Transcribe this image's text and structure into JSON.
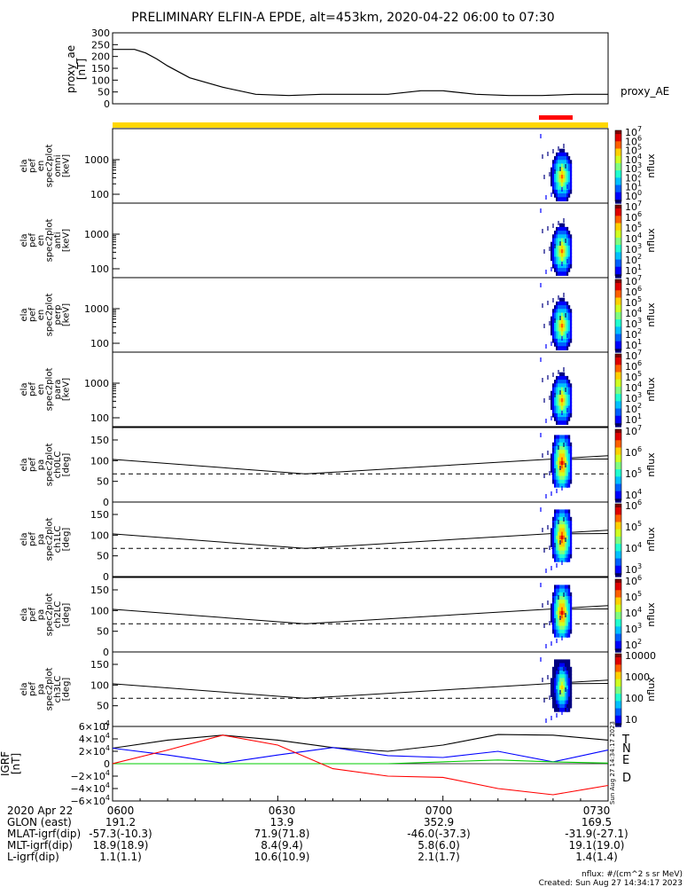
{
  "title": "PRELIMINARY ELFIN-A EPDE, alt=453km, 2020-04-22 06:00 to 07:30",
  "colors": {
    "yellow_bar": "#ffd700",
    "red_bar": "#ff0000",
    "grf_T": "#000000",
    "grf_N": "#0000ff",
    "grf_E": "#00cc00",
    "grf_D": "#ff0000"
  },
  "chart_data": [
    {
      "type": "line",
      "name": "proxy_ae",
      "ylabel": "proxy_ae [nT]",
      "legend": "proxy_AE",
      "ylim": [
        0,
        300
      ],
      "yticks": [
        "300",
        "250",
        "200",
        "150",
        "100",
        "50",
        "0"
      ],
      "x_minutes": [
        0,
        4,
        6,
        8,
        10,
        14,
        20,
        26,
        32,
        38,
        44,
        50,
        56,
        60,
        66,
        72,
        78,
        84,
        90
      ],
      "values": [
        230,
        230,
        215,
        190,
        160,
        110,
        70,
        40,
        35,
        40,
        40,
        40,
        55,
        55,
        40,
        35,
        35,
        40,
        40
      ]
    },
    {
      "type": "heatmap",
      "panels": [
        {
          "ylabel": [
            "ela",
            "pef",
            "en",
            "spec2plot",
            "omni",
            "[keV]"
          ],
          "yticks": [
            "1000",
            "100"
          ],
          "cbar_ticks": [
            "10",
            "10",
            "10",
            "10",
            "10",
            "10",
            "10",
            "10"
          ],
          "cbar_exp": [
            "7",
            "6",
            "5",
            "4",
            "3",
            "2",
            "1",
            "0"
          ],
          "cbar_label": "nflux"
        },
        {
          "ylabel": [
            "ela",
            "pef",
            "en",
            "spec2plot",
            "anti",
            "[keV]"
          ],
          "yticks": [
            "1000",
            "100"
          ],
          "cbar_ticks": [
            "10",
            "10",
            "10",
            "10",
            "10",
            "10",
            "10"
          ],
          "cbar_exp": [
            "7",
            "6",
            "5",
            "4",
            "3",
            "2",
            "1"
          ],
          "cbar_label": "nflux"
        },
        {
          "ylabel": [
            "ela",
            "pef",
            "en",
            "spec2plot",
            "perp",
            "[keV]"
          ],
          "yticks": [
            "1000",
            "100"
          ],
          "cbar_ticks": [
            "10",
            "10",
            "10",
            "10",
            "10",
            "10",
            "10"
          ],
          "cbar_exp": [
            "7",
            "6",
            "5",
            "4",
            "3",
            "2",
            "1"
          ],
          "cbar_label": "nflux"
        },
        {
          "ylabel": [
            "ela",
            "pef",
            "en",
            "spec2plot",
            "para",
            "[keV]"
          ],
          "yticks": [
            "1000",
            "100"
          ],
          "cbar_ticks": [
            "10",
            "10",
            "10",
            "10",
            "10",
            "10",
            "10"
          ],
          "cbar_exp": [
            "7",
            "6",
            "5",
            "4",
            "3",
            "2",
            "1"
          ],
          "cbar_label": "nflux"
        },
        {
          "ylabel": [
            "ela",
            "pef",
            "pa",
            "spec2plot",
            "ch0LC",
            "[deg]"
          ],
          "yticks": [
            "150",
            "100",
            "50",
            "0"
          ],
          "cbar_ticks": [
            "10",
            "10",
            "10",
            "10"
          ],
          "cbar_exp": [
            "7",
            "6",
            "5",
            "4"
          ],
          "cbar_label": "nflux"
        },
        {
          "ylabel": [
            "ela",
            "pef",
            "pa",
            "spec2plot",
            "ch1LC",
            "[deg]"
          ],
          "yticks": [
            "150",
            "100",
            "50",
            "0"
          ],
          "cbar_ticks": [
            "10",
            "10",
            "10",
            "10"
          ],
          "cbar_exp": [
            "6",
            "5",
            "4",
            "3"
          ],
          "cbar_label": "nflux"
        },
        {
          "ylabel": [
            "ela",
            "pef",
            "pa",
            "spec2plot",
            "ch2LC",
            "[deg]"
          ],
          "yticks": [
            "150",
            "100",
            "50",
            "0"
          ],
          "cbar_ticks": [
            "10",
            "10",
            "10",
            "10",
            "10"
          ],
          "cbar_exp": [
            "6",
            "5",
            "4",
            "3",
            "2"
          ],
          "cbar_label": "nflux"
        },
        {
          "ylabel": [
            "ela",
            "pef",
            "pa",
            "spec2plot",
            "ch3LC",
            "[deg]"
          ],
          "yticks": [
            "150",
            "100",
            "50",
            "0"
          ],
          "cbar_ticks": [
            "10000",
            "1000",
            "100",
            "10"
          ],
          "cbar_exp": [
            "",
            "",
            "",
            ""
          ],
          "cbar_label": "nflux"
        }
      ]
    },
    {
      "type": "line",
      "name": "IGRF",
      "ylabel": "IGRF [nT]",
      "ylim": [
        -60000,
        60000
      ],
      "yticks": [
        "6×10",
        "4×10",
        "2×10",
        "0",
        "−2×10",
        "−4×10",
        "−6×10"
      ],
      "ytick_exp": [
        "4",
        "4",
        "4",
        "",
        "4",
        "4",
        "4"
      ],
      "x_minutes": [
        0,
        10,
        20,
        30,
        40,
        50,
        60,
        70,
        80,
        90
      ],
      "series": [
        {
          "name": "T",
          "values": [
            25000,
            38000,
            46000,
            38000,
            26000,
            20000,
            30000,
            47000,
            46000,
            38000
          ]
        },
        {
          "name": "N",
          "values": [
            25000,
            14000,
            1000,
            14000,
            26000,
            13000,
            10000,
            20000,
            3000,
            22000
          ]
        },
        {
          "name": "E",
          "values": [
            0,
            0,
            0,
            0,
            0,
            0,
            3000,
            6000,
            3000,
            1000
          ]
        },
        {
          "name": "D",
          "values": [
            0,
            22000,
            46000,
            30000,
            -8000,
            -20000,
            -22000,
            -40000,
            -50000,
            -35000
          ]
        }
      ]
    }
  ],
  "time_axis": {
    "labels": [
      "0600",
      "0630",
      "0700",
      "0730"
    ],
    "date_label": "2020 Apr 22"
  },
  "ephemeris": [
    {
      "name": "GLON (east)",
      "values": [
        "191.2",
        "13.9",
        "352.9",
        "169.5"
      ]
    },
    {
      "name": "MLAT-igrf(dip)",
      "values": [
        "-57.3(-10.3)",
        "71.9(71.8)",
        "-46.0(-37.3)",
        "-31.9(-27.1)"
      ]
    },
    {
      "name": "MLT-igrf(dip)",
      "values": [
        "18.9(18.9)",
        "8.4(9.4)",
        "5.8(6.0)",
        "19.1(19.0)"
      ]
    },
    {
      "name": "L-igrf(dip)",
      "values": [
        "1.1(1.1)",
        "10.6(10.9)",
        "2.1(1.7)",
        "1.4(1.4)"
      ]
    }
  ],
  "footer": {
    "units": "nflux: #/(cm^2 s sr MeV)",
    "created": "Created: Sun Aug 27 14:34:17 2023",
    "side_stamp": "Sun Aug 27 14:34:17 2023"
  }
}
